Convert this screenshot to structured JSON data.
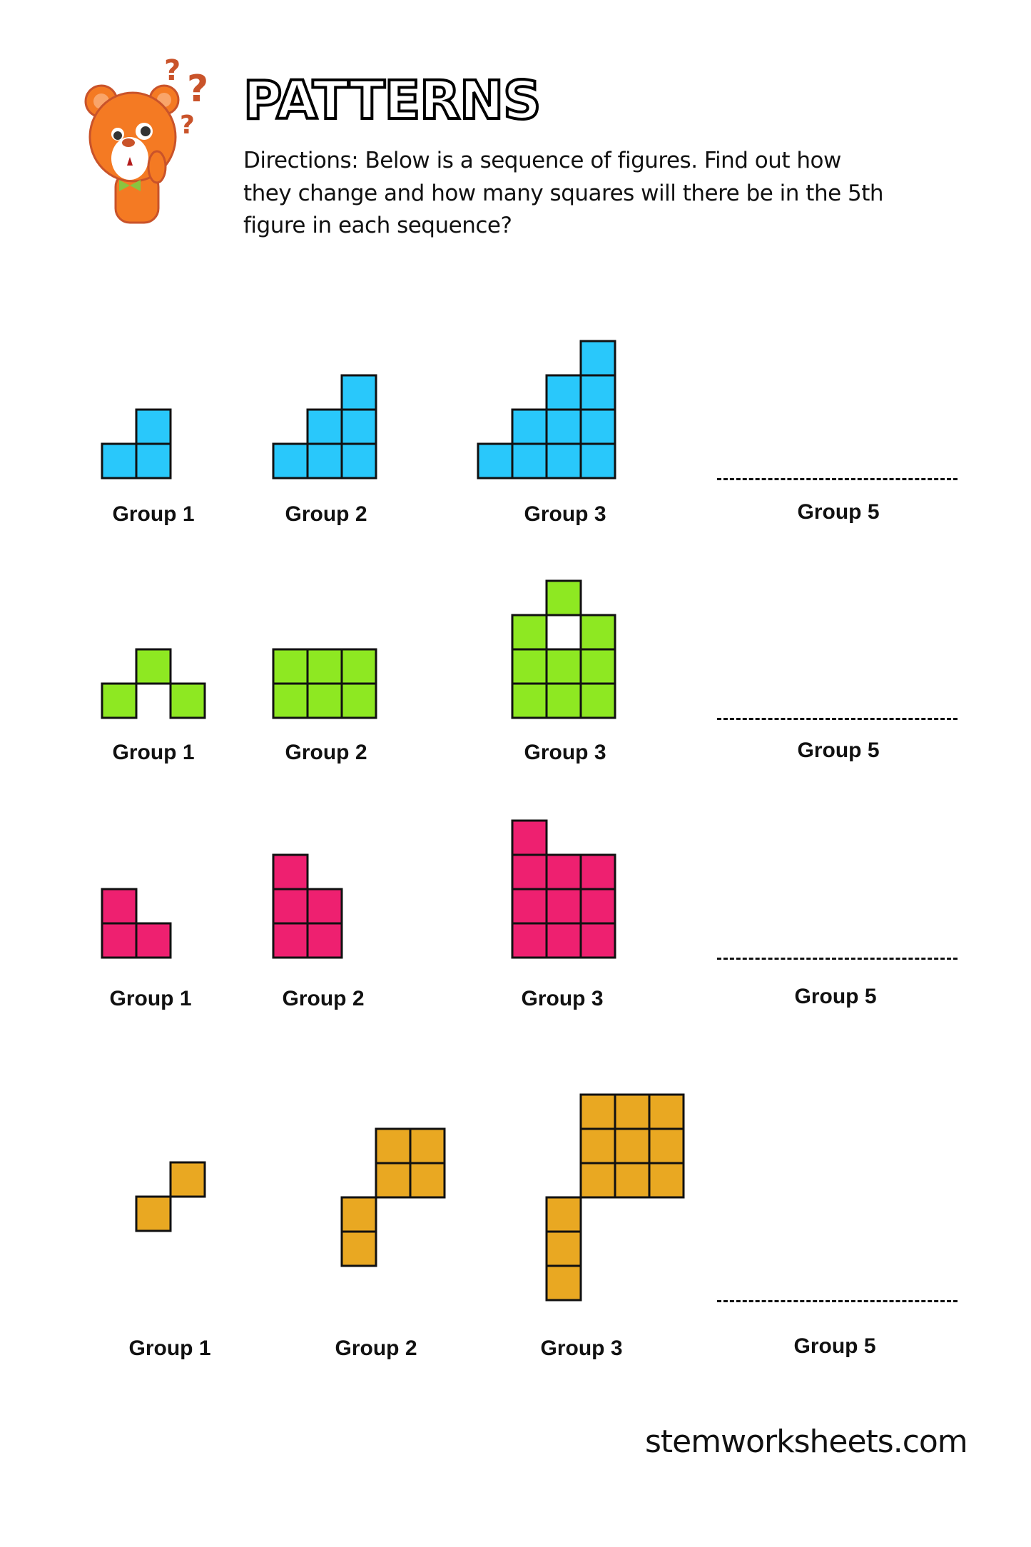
{
  "header": {
    "title": "PATTERNS",
    "directions": "Directions: Below is a sequence of figures. Find out how they change and how many squares will there be in the 5th figure in each sequence?"
  },
  "rows": [
    {
      "color": "#29c8fb",
      "labels": [
        "Group 1",
        "Group 2",
        "Group 3",
        "Group 5"
      ],
      "figures": [
        [
          [
            0,
            0
          ],
          [
            1,
            0
          ],
          [
            1,
            1
          ]
        ],
        [
          [
            0,
            0
          ],
          [
            1,
            0
          ],
          [
            2,
            0
          ],
          [
            1,
            1
          ],
          [
            2,
            1
          ],
          [
            2,
            2
          ]
        ],
        [
          [
            0,
            0
          ],
          [
            1,
            0
          ],
          [
            2,
            0
          ],
          [
            3,
            0
          ],
          [
            1,
            1
          ],
          [
            2,
            1
          ],
          [
            3,
            1
          ],
          [
            2,
            2
          ],
          [
            3,
            2
          ],
          [
            3,
            3
          ]
        ]
      ]
    },
    {
      "color": "#8ee822",
      "labels": [
        "Group 1",
        "Group 2",
        "Group 3",
        "Group 5"
      ],
      "figures": [
        [
          [
            0,
            0
          ],
          [
            1,
            1
          ],
          [
            2,
            0
          ]
        ],
        [
          [
            0,
            0
          ],
          [
            1,
            0
          ],
          [
            2,
            0
          ],
          [
            0,
            1
          ],
          [
            1,
            1
          ],
          [
            2,
            1
          ]
        ],
        [
          [
            0,
            0
          ],
          [
            1,
            0
          ],
          [
            2,
            0
          ],
          [
            0,
            1
          ],
          [
            1,
            1
          ],
          [
            2,
            1
          ],
          [
            0,
            2
          ],
          [
            2,
            2
          ],
          [
            1,
            3
          ]
        ]
      ]
    },
    {
      "color": "#ee2070",
      "labels": [
        "Group 1",
        "Group 2",
        "Group 3",
        "Group 5"
      ],
      "figures": [
        [
          [
            0,
            0
          ],
          [
            1,
            0
          ],
          [
            0,
            1
          ]
        ],
        [
          [
            0,
            0
          ],
          [
            1,
            0
          ],
          [
            0,
            1
          ],
          [
            1,
            1
          ],
          [
            0,
            2
          ]
        ],
        [
          [
            0,
            0
          ],
          [
            1,
            0
          ],
          [
            2,
            0
          ],
          [
            0,
            1
          ],
          [
            1,
            1
          ],
          [
            2,
            1
          ],
          [
            0,
            2
          ],
          [
            1,
            2
          ],
          [
            2,
            2
          ],
          [
            0,
            3
          ]
        ]
      ]
    },
    {
      "color": "#e9a822",
      "labels": [
        "Group 1",
        "Group 2",
        "Group 3",
        "Group 5"
      ],
      "figures": [
        [
          [
            0,
            0
          ],
          [
            1,
            1
          ]
        ],
        [
          [
            0,
            0
          ],
          [
            0,
            1
          ],
          [
            1,
            2
          ],
          [
            2,
            2
          ],
          [
            1,
            3
          ],
          [
            2,
            3
          ]
        ],
        [
          [
            0,
            0
          ],
          [
            0,
            1
          ],
          [
            0,
            2
          ],
          [
            1,
            3
          ],
          [
            2,
            3
          ],
          [
            3,
            3
          ],
          [
            1,
            4
          ],
          [
            2,
            4
          ],
          [
            3,
            4
          ],
          [
            1,
            5
          ],
          [
            2,
            5
          ],
          [
            3,
            5
          ]
        ]
      ]
    }
  ],
  "footer": {
    "site": "stemworksheets.com"
  },
  "icons": {
    "mascot": "thinking-bear-with-question-marks"
  }
}
